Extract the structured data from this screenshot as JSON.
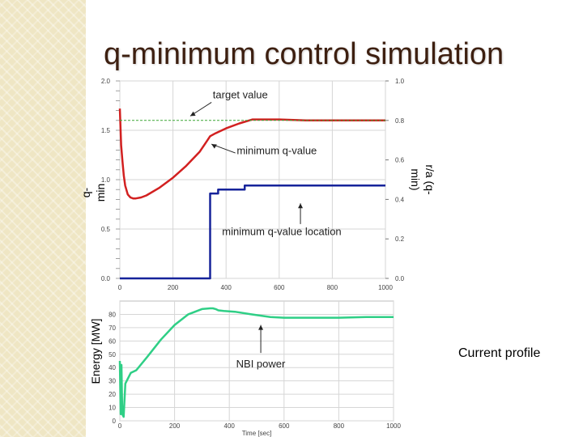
{
  "slide": {
    "title": "q-minimum control simulation",
    "side_note": "Current profile"
  },
  "colors": {
    "title": "#3d1f10",
    "stripe": "#efe6c4",
    "q_min": "#d22020",
    "location": "#16239a",
    "target": "#3aa535",
    "nbi": "#2fcf86"
  },
  "chart_data": [
    {
      "type": "line",
      "name": "q-min panel",
      "ylabel_left": "q-\nmin",
      "ylabel_right": "r/a (q-\nmin)",
      "x_ticks": [
        0,
        200,
        400,
        600,
        800,
        1000
      ],
      "xlim": [
        0,
        1000
      ],
      "ylim": [
        0,
        2.0
      ],
      "y_ticks": [
        0.0,
        0.5,
        1.0,
        1.5,
        2.0
      ],
      "y_tick_labels": [
        "0.0",
        "0.5",
        "1.0",
        "1.5",
        "2.0"
      ],
      "y2lim": [
        0,
        1.0
      ],
      "y2_ticks": [
        0.0,
        0.2,
        0.4,
        0.6,
        0.8,
        1.0
      ],
      "y2_tick_labels": [
        "0.0",
        "0.2",
        "0.4",
        "0.6",
        "0.8",
        "1.0"
      ],
      "grid": true,
      "series": [
        {
          "key": "q_min",
          "axis": "left",
          "x": [
            0,
            5,
            10,
            15,
            20,
            30,
            40,
            50,
            60,
            80,
            100,
            150,
            200,
            250,
            300,
            320,
            340,
            360,
            400,
            450,
            500,
            550,
            600,
            700,
            800,
            900,
            1000
          ],
          "y": [
            1.72,
            1.35,
            1.18,
            1.04,
            0.94,
            0.85,
            0.82,
            0.81,
            0.81,
            0.82,
            0.84,
            0.92,
            1.02,
            1.14,
            1.28,
            1.36,
            1.44,
            1.47,
            1.52,
            1.57,
            1.61,
            1.61,
            1.61,
            1.6,
            1.6,
            1.6,
            1.6
          ]
        },
        {
          "key": "target",
          "axis": "left",
          "dashed": true,
          "x": [
            0,
            1000
          ],
          "y": [
            1.6,
            1.6
          ]
        },
        {
          "key": "location",
          "axis": "right",
          "step": true,
          "x": [
            0,
            340,
            340,
            370,
            370,
            470,
            470,
            1000
          ],
          "y": [
            0.0,
            0.0,
            0.43,
            0.43,
            0.45,
            0.45,
            0.47,
            0.47
          ]
        }
      ],
      "annotations": [
        "target value",
        "minimum q-value",
        "minimum q-value location"
      ]
    },
    {
      "type": "line",
      "name": "NBI panel",
      "ylabel_left": "Energy [MW]",
      "xlabel": "Time [sec]",
      "x_ticks": [
        0,
        200,
        400,
        600,
        800,
        1000
      ],
      "xlim": [
        0,
        1000
      ],
      "ylim": [
        0,
        90
      ],
      "y_ticks": [
        0,
        10,
        20,
        30,
        40,
        50,
        60,
        70,
        80
      ],
      "grid": true,
      "series": [
        {
          "key": "nbi",
          "x": [
            0,
            3,
            6,
            9,
            14,
            20,
            40,
            60,
            100,
            150,
            200,
            250,
            300,
            330,
            340,
            350,
            360,
            380,
            420,
            480,
            550,
            600,
            700,
            800,
            900,
            1000
          ],
          "y": [
            45,
            5,
            42,
            5,
            3,
            28,
            36,
            38,
            48,
            61,
            72,
            80,
            84,
            84.5,
            84.5,
            84,
            83,
            82.5,
            82,
            80,
            78,
            77.5,
            77.5,
            77.5,
            78,
            78
          ]
        }
      ],
      "annotations": [
        "NBI power"
      ]
    }
  ]
}
